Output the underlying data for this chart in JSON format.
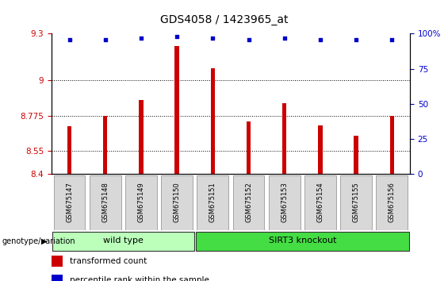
{
  "title": "GDS4058 / 1423965_at",
  "samples": [
    "GSM675147",
    "GSM675148",
    "GSM675149",
    "GSM675150",
    "GSM675151",
    "GSM675152",
    "GSM675153",
    "GSM675154",
    "GSM675155",
    "GSM675156"
  ],
  "bar_values": [
    8.71,
    8.775,
    8.875,
    9.22,
    9.08,
    8.74,
    8.855,
    8.715,
    8.645,
    8.775
  ],
  "percentile_values": [
    96,
    96,
    97,
    98,
    97,
    96,
    97,
    96,
    96,
    96
  ],
  "bar_color": "#cc0000",
  "dot_color": "#0000cc",
  "ylim_left": [
    8.4,
    9.3
  ],
  "ylim_right": [
    0,
    100
  ],
  "yticks_left": [
    8.4,
    8.55,
    8.775,
    9.0,
    9.3
  ],
  "ytick_labels_left": [
    "8.4",
    "8.55",
    "8.775",
    "9",
    "9.3"
  ],
  "yticks_right": [
    0,
    25,
    50,
    75,
    100
  ],
  "ytick_labels_right": [
    "0",
    "25",
    "50",
    "75",
    "100%"
  ],
  "grid_values": [
    8.55,
    8.775,
    9.0
  ],
  "group_labels": [
    "wild type",
    "SIRT3 knockout"
  ],
  "group_split": 4,
  "group_colors": [
    "#bbffbb",
    "#44dd44"
  ],
  "genotype_label": "genotype/variation",
  "legend_items": [
    {
      "color": "#cc0000",
      "label": "transformed count"
    },
    {
      "color": "#0000cc",
      "label": "percentile rank within the sample"
    }
  ],
  "bar_color_red": "#cc0000",
  "dot_color_blue": "#0000cc",
  "tick_label_color_left": "#cc0000",
  "tick_label_color_right": "#0000cc",
  "bar_width": 0.12,
  "title_fontsize": 10,
  "tick_fontsize": 7.5,
  "label_fontsize": 8
}
